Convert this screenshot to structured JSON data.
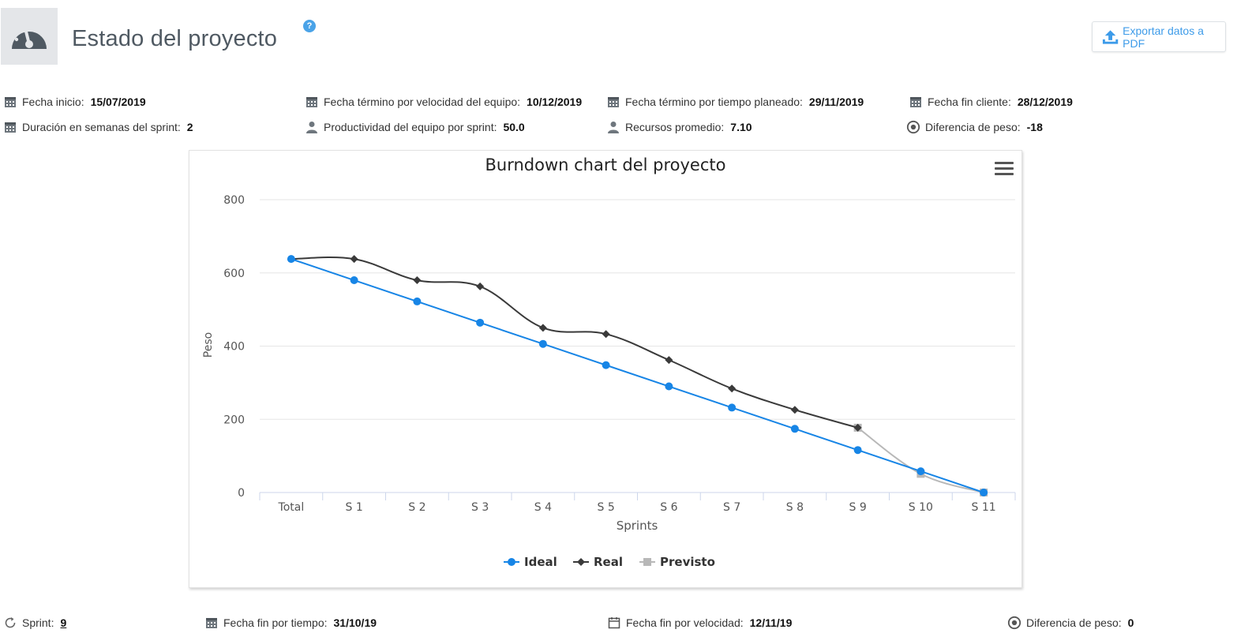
{
  "header": {
    "title": "Estado del proyecto",
    "help": "?",
    "export_label": "Exportar datos a PDF"
  },
  "info": {
    "fecha_inicio": {
      "label": "Fecha inicio:",
      "value": "15/07/2019",
      "icon": "calendar-icon"
    },
    "fecha_velocidad": {
      "label": "Fecha término por velocidad del equipo:",
      "value": "10/12/2019",
      "icon": "calendar-icon"
    },
    "fecha_tiempo": {
      "label": "Fecha término por tiempo planeado:",
      "value": "29/11/2019",
      "icon": "calendar-icon"
    },
    "fecha_cliente": {
      "label": "Fecha fin cliente:",
      "value": "28/12/2019",
      "icon": "calendar-icon"
    },
    "duracion": {
      "label": "Duración en semanas del sprint:",
      "value": "2",
      "icon": "calendar-icon"
    },
    "productividad": {
      "label": "Productividad del equipo por sprint:",
      "value": "50.0",
      "icon": "user-icon"
    },
    "recursos": {
      "label": "Recursos promedio:",
      "value": "7.10",
      "icon": "user-icon"
    },
    "diferencia": {
      "label": "Diferencia de peso:",
      "value": "-18",
      "icon": "target-icon"
    }
  },
  "footer": {
    "sprint": {
      "label": "Sprint:",
      "value": "9",
      "icon": "refresh-icon"
    },
    "fin_tiempo": {
      "label": "Fecha fin por tiempo:",
      "value": "31/10/19",
      "icon": "calendar-icon"
    },
    "fin_velocidad": {
      "label": "Fecha fin por velocidad:",
      "value": "12/11/19",
      "icon": "calendar-outline-icon"
    },
    "diferencia": {
      "label": "Diferencia de peso:",
      "value": "0",
      "icon": "target-icon"
    }
  },
  "chart_data": {
    "type": "line",
    "title": "Burndown chart del proyecto",
    "xlabel": "Sprints",
    "ylabel": "Peso",
    "ylim": [
      0,
      800
    ],
    "yticks": [
      0,
      200,
      400,
      600,
      800
    ],
    "categories": [
      "Total",
      "S 1",
      "S 2",
      "S 3",
      "S 4",
      "S 5",
      "S 6",
      "S 7",
      "S 8",
      "S 9",
      "S 10",
      "S 11"
    ],
    "legend_position": "bottom-center",
    "grid": true,
    "series": [
      {
        "name": "Ideal",
        "color": "#1785e6",
        "marker": "circle",
        "values": [
          638,
          580,
          522,
          464,
          406,
          348,
          290,
          232,
          174,
          116,
          58,
          0
        ]
      },
      {
        "name": "Real",
        "color": "#3a3a3a",
        "marker": "diamond",
        "values": [
          638,
          638,
          580,
          563,
          450,
          433,
          362,
          284,
          226,
          177,
          null,
          null
        ]
      },
      {
        "name": "Previsto",
        "color": "#b8b8b8",
        "marker": "square",
        "values": [
          null,
          null,
          null,
          null,
          null,
          null,
          null,
          null,
          null,
          177,
          51,
          0
        ]
      }
    ]
  }
}
